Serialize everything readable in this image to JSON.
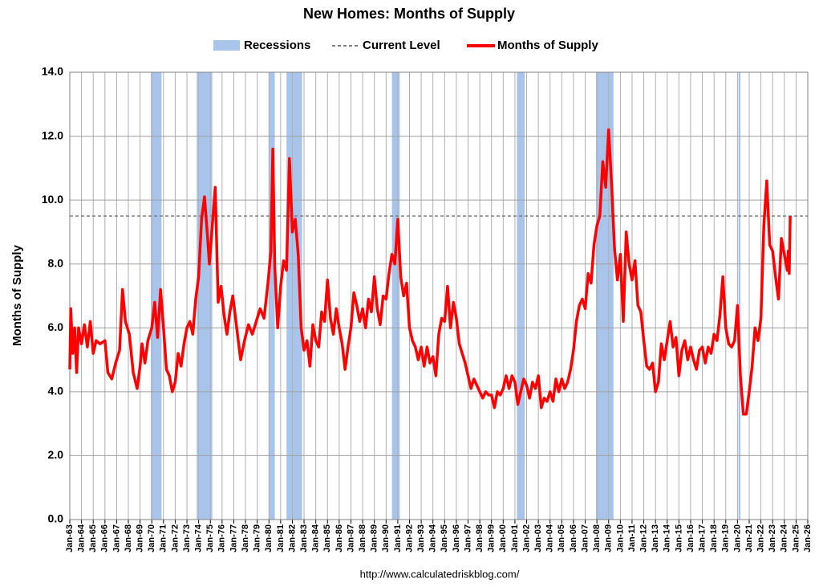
{
  "chart_data": {
    "type": "line",
    "title": "New Homes: Months of Supply",
    "ylabel": "Months of Supply",
    "source": "http://www.calculatedriskblog.com/",
    "legend": "top",
    "grid": true,
    "ylim": [
      0,
      14
    ],
    "yticks": [
      {
        "value": 0,
        "label": "0.0"
      },
      {
        "value": 2,
        "label": "2.0"
      },
      {
        "value": 4,
        "label": "4.0"
      },
      {
        "value": 6,
        "label": "6.0"
      },
      {
        "value": 8,
        "label": "8.0"
      },
      {
        "value": 10,
        "label": "10.0"
      },
      {
        "value": 12,
        "label": "12.0"
      },
      {
        "value": 14,
        "label": "14.0"
      }
    ],
    "xlim": [
      "1963-01",
      "2026-01"
    ],
    "xticks": [
      {
        "value": "1963-01",
        "label": "Jan-63"
      },
      {
        "value": "1964-01",
        "label": "Jan-64"
      },
      {
        "value": "1965-01",
        "label": "Jan-65"
      },
      {
        "value": "1966-01",
        "label": "Jan-66"
      },
      {
        "value": "1967-01",
        "label": "Jan-67"
      },
      {
        "value": "1968-01",
        "label": "Jan-68"
      },
      {
        "value": "1969-01",
        "label": "Jan-69"
      },
      {
        "value": "1970-01",
        "label": "Jan-70"
      },
      {
        "value": "1971-01",
        "label": "Jan-71"
      },
      {
        "value": "1972-01",
        "label": "Jan-72"
      },
      {
        "value": "1973-01",
        "label": "Jan-73"
      },
      {
        "value": "1974-01",
        "label": "Jan-74"
      },
      {
        "value": "1975-01",
        "label": "Jan-75"
      },
      {
        "value": "1976-01",
        "label": "Jan-76"
      },
      {
        "value": "1977-01",
        "label": "Jan-77"
      },
      {
        "value": "1978-01",
        "label": "Jan-78"
      },
      {
        "value": "1979-01",
        "label": "Jan-79"
      },
      {
        "value": "1980-01",
        "label": "Jan-80"
      },
      {
        "value": "1981-01",
        "label": "Jan-81"
      },
      {
        "value": "1982-01",
        "label": "Jan-82"
      },
      {
        "value": "1983-01",
        "label": "Jan-83"
      },
      {
        "value": "1984-01",
        "label": "Jan-84"
      },
      {
        "value": "1985-01",
        "label": "Jan-85"
      },
      {
        "value": "1986-01",
        "label": "Jan-86"
      },
      {
        "value": "1987-01",
        "label": "Jan-87"
      },
      {
        "value": "1988-01",
        "label": "Jan-88"
      },
      {
        "value": "1989-01",
        "label": "Jan-89"
      },
      {
        "value": "1990-01",
        "label": "Jan-90"
      },
      {
        "value": "1991-01",
        "label": "Jan-91"
      },
      {
        "value": "1992-01",
        "label": "Jan-92"
      },
      {
        "value": "1993-01",
        "label": "Jan-93"
      },
      {
        "value": "1994-01",
        "label": "Jan-94"
      },
      {
        "value": "1995-01",
        "label": "Jan-95"
      },
      {
        "value": "1996-01",
        "label": "Jan-96"
      },
      {
        "value": "1997-01",
        "label": "Jan-97"
      },
      {
        "value": "1998-01",
        "label": "Jan-98"
      },
      {
        "value": "1999-01",
        "label": "Jan-99"
      },
      {
        "value": "2000-01",
        "label": "Jan-00"
      },
      {
        "value": "2001-01",
        "label": "Jan-01"
      },
      {
        "value": "2002-01",
        "label": "Jan-02"
      },
      {
        "value": "2003-01",
        "label": "Jan-03"
      },
      {
        "value": "2004-01",
        "label": "Jan-04"
      },
      {
        "value": "2005-01",
        "label": "Jan-05"
      },
      {
        "value": "2006-01",
        "label": "Jan-06"
      },
      {
        "value": "2007-01",
        "label": "Jan-07"
      },
      {
        "value": "2008-01",
        "label": "Jan-08"
      },
      {
        "value": "2009-01",
        "label": "Jan-09"
      },
      {
        "value": "2010-01",
        "label": "Jan-10"
      },
      {
        "value": "2011-01",
        "label": "Jan-11"
      },
      {
        "value": "2012-01",
        "label": "Jan-12"
      },
      {
        "value": "2013-01",
        "label": "Jan-13"
      },
      {
        "value": "2014-01",
        "label": "Jan-14"
      },
      {
        "value": "2015-01",
        "label": "Jan-15"
      },
      {
        "value": "2016-01",
        "label": "Jan-16"
      },
      {
        "value": "2017-01",
        "label": "Jan-17"
      },
      {
        "value": "2018-01",
        "label": "Jan-18"
      },
      {
        "value": "2019-01",
        "label": "Jan-19"
      },
      {
        "value": "2020-01",
        "label": "Jan-20"
      },
      {
        "value": "2021-01",
        "label": "Jan-21"
      },
      {
        "value": "2022-01",
        "label": "Jan-22"
      },
      {
        "value": "2023-01",
        "label": "Jan-23"
      },
      {
        "value": "2024-01",
        "label": "Jan-24"
      },
      {
        "value": "2025-01",
        "label": "Jan-25"
      },
      {
        "value": "2026-01",
        "label": "Jan-26"
      }
    ],
    "recessions": {
      "name": "Recessions",
      "color": "#a9c4eb",
      "periods": [
        [
          "1969-12",
          "1970-11"
        ],
        [
          "1973-11",
          "1975-03"
        ],
        [
          "1980-01",
          "1980-07"
        ],
        [
          "1981-07",
          "1982-11"
        ],
        [
          "1990-07",
          "1991-03"
        ],
        [
          "2001-03",
          "2001-11"
        ],
        [
          "2007-12",
          "2009-06"
        ],
        [
          "2020-02",
          "2020-04"
        ]
      ]
    },
    "reference_line": {
      "name": "Current Level",
      "value": 9.5,
      "color": "#808080"
    },
    "x": [
      "1963-01",
      "1963-02",
      "1963-04",
      "1963-06",
      "1963-08",
      "1963-10",
      "1964-01",
      "1964-04",
      "1964-07",
      "1964-10",
      "1965-01",
      "1965-04",
      "1965-08",
      "1966-01",
      "1966-04",
      "1966-08",
      "1966-12",
      "1967-04",
      "1967-07",
      "1967-10",
      "1968-02",
      "1968-06",
      "1968-10",
      "1969-01",
      "1969-03",
      "1969-06",
      "1969-09",
      "1970-01",
      "1970-04",
      "1970-07",
      "1970-10",
      "1971-01",
      "1971-04",
      "1971-07",
      "1971-10",
      "1972-01",
      "1972-04",
      "1972-07",
      "1972-10",
      "1973-01",
      "1973-04",
      "1973-07",
      "1973-10",
      "1974-01",
      "1974-04",
      "1974-07",
      "1974-10",
      "1974-12",
      "1975-03",
      "1975-06",
      "1975-09",
      "1975-12",
      "1976-03",
      "1976-06",
      "1976-09",
      "1976-12",
      "1977-04",
      "1977-08",
      "1977-12",
      "1978-04",
      "1978-08",
      "1978-12",
      "1979-04",
      "1979-08",
      "1979-12",
      "1980-03",
      "1980-05",
      "1980-07",
      "1980-10",
      "1981-01",
      "1981-04",
      "1981-07",
      "1981-10",
      "1982-01",
      "1982-04",
      "1982-07",
      "1982-10",
      "1983-01",
      "1983-04",
      "1983-07",
      "1983-10",
      "1984-01",
      "1984-04",
      "1984-07",
      "1984-10",
      "1985-01",
      "1985-04",
      "1985-07",
      "1985-10",
      "1986-01",
      "1986-04",
      "1986-07",
      "1986-10",
      "1987-01",
      "1987-04",
      "1987-07",
      "1987-10",
      "1988-01",
      "1988-04",
      "1988-07",
      "1988-10",
      "1989-01",
      "1989-04",
      "1989-07",
      "1989-10",
      "1990-01",
      "1990-04",
      "1990-07",
      "1990-10",
      "1991-01",
      "1991-04",
      "1991-07",
      "1991-10",
      "1992-01",
      "1992-04",
      "1992-07",
      "1992-10",
      "1993-01",
      "1993-04",
      "1993-07",
      "1993-10",
      "1994-01",
      "1994-04",
      "1994-07",
      "1994-10",
      "1995-01",
      "1995-04",
      "1995-07",
      "1995-10",
      "1996-01",
      "1996-04",
      "1996-07",
      "1996-10",
      "1997-01",
      "1997-04",
      "1997-07",
      "1997-10",
      "1998-01",
      "1998-04",
      "1998-07",
      "1998-10",
      "1999-01",
      "1999-04",
      "1999-07",
      "1999-10",
      "2000-01",
      "2000-04",
      "2000-07",
      "2000-10",
      "2001-01",
      "2001-04",
      "2001-07",
      "2001-10",
      "2002-01",
      "2002-04",
      "2002-07",
      "2002-10",
      "2003-01",
      "2003-04",
      "2003-07",
      "2003-10",
      "2004-01",
      "2004-04",
      "2004-07",
      "2004-10",
      "2005-01",
      "2005-04",
      "2005-07",
      "2005-10",
      "2006-01",
      "2006-04",
      "2006-07",
      "2006-10",
      "2007-01",
      "2007-04",
      "2007-07",
      "2007-10",
      "2008-01",
      "2008-04",
      "2008-07",
      "2008-10",
      "2009-01",
      "2009-04",
      "2009-07",
      "2009-10",
      "2010-01",
      "2010-04",
      "2010-07",
      "2010-10",
      "2011-01",
      "2011-04",
      "2011-07",
      "2011-10",
      "2012-01",
      "2012-04",
      "2012-07",
      "2012-10",
      "2013-01",
      "2013-04",
      "2013-07",
      "2013-10",
      "2014-01",
      "2014-04",
      "2014-07",
      "2014-10",
      "2015-01",
      "2015-04",
      "2015-07",
      "2015-10",
      "2016-01",
      "2016-04",
      "2016-07",
      "2016-10",
      "2017-01",
      "2017-04",
      "2017-07",
      "2017-10",
      "2018-01",
      "2018-04",
      "2018-07",
      "2018-10",
      "2019-01",
      "2019-04",
      "2019-07",
      "2019-10",
      "2020-01",
      "2020-04",
      "2020-07",
      "2020-10",
      "2021-01",
      "2021-04",
      "2021-07",
      "2021-10",
      "2022-01",
      "2022-04",
      "2022-07",
      "2022-10",
      "2023-01",
      "2023-04",
      "2023-07",
      "2023-10",
      "2024-01",
      "2024-04",
      "2024-05",
      "2024-06",
      "2024-07"
    ],
    "series": [
      {
        "name": "Months of Supply",
        "color": "#ff0000",
        "values": [
          4.7,
          6.6,
          5.2,
          6.0,
          4.6,
          6.0,
          5.5,
          6.1,
          5.4,
          6.2,
          5.2,
          5.6,
          5.5,
          5.6,
          4.6,
          4.4,
          4.9,
          5.3,
          7.2,
          6.2,
          5.8,
          4.6,
          4.1,
          4.8,
          5.5,
          4.9,
          5.6,
          6.0,
          6.8,
          5.7,
          7.2,
          6.0,
          4.7,
          4.5,
          4.0,
          4.3,
          5.2,
          4.8,
          5.5,
          6.0,
          6.2,
          5.8,
          6.9,
          7.6,
          9.4,
          10.1,
          8.9,
          8.0,
          9.2,
          10.4,
          6.8,
          7.3,
          6.4,
          5.8,
          6.5,
          7.0,
          6.0,
          5.0,
          5.6,
          6.1,
          5.8,
          6.2,
          6.6,
          6.3,
          7.4,
          8.4,
          11.6,
          7.9,
          6.0,
          7.3,
          8.1,
          7.8,
          11.3,
          9.0,
          9.4,
          8.3,
          6.0,
          5.3,
          5.6,
          4.8,
          6.1,
          5.6,
          5.4,
          6.5,
          6.2,
          7.5,
          6.3,
          5.8,
          6.6,
          6.0,
          5.5,
          4.7,
          5.4,
          6.0,
          7.1,
          6.7,
          6.2,
          6.6,
          6.0,
          6.9,
          6.5,
          7.6,
          6.6,
          6.1,
          7.0,
          6.9,
          7.7,
          8.3,
          8.0,
          9.4,
          7.6,
          7.0,
          7.4,
          6.0,
          5.6,
          5.4,
          5.0,
          5.4,
          4.8,
          5.4,
          4.9,
          5.1,
          4.5,
          5.8,
          6.3,
          6.2,
          7.3,
          6.0,
          6.8,
          6.3,
          5.5,
          5.2,
          4.9,
          4.5,
          4.1,
          4.4,
          4.2,
          4.0,
          3.8,
          4.0,
          3.9,
          3.9,
          3.5,
          4.0,
          3.9,
          4.1,
          4.5,
          4.1,
          4.5,
          4.3,
          3.6,
          4.0,
          4.4,
          4.2,
          3.8,
          4.3,
          4.1,
          4.5,
          3.5,
          3.8,
          3.7,
          4.0,
          3.7,
          4.4,
          4.0,
          4.4,
          4.1,
          4.3,
          4.7,
          5.3,
          6.2,
          6.7,
          6.9,
          6.6,
          7.7,
          7.4,
          8.6,
          9.2,
          9.5,
          11.2,
          10.4,
          12.2,
          10.5,
          8.5,
          7.5,
          8.3,
          6.2,
          9.0,
          8.0,
          7.5,
          8.1,
          6.7,
          6.5,
          5.6,
          4.8,
          4.7,
          4.9,
          4.0,
          4.3,
          5.5,
          5.0,
          5.6,
          6.2,
          5.4,
          5.7,
          4.5,
          5.3,
          5.6,
          5.0,
          5.4,
          5.0,
          4.7,
          5.3,
          5.4,
          4.9,
          5.4,
          5.2,
          5.8,
          5.6,
          6.4,
          7.6,
          6.0,
          5.5,
          5.4,
          5.6,
          6.7,
          4.5,
          3.3,
          3.3,
          4.0,
          4.8,
          6.0,
          5.6,
          6.3,
          9.2,
          10.6,
          8.6,
          8.4,
          7.6,
          6.9,
          8.8,
          8.3,
          7.8,
          8.4,
          7.7,
          9.5
        ]
      }
    ]
  }
}
